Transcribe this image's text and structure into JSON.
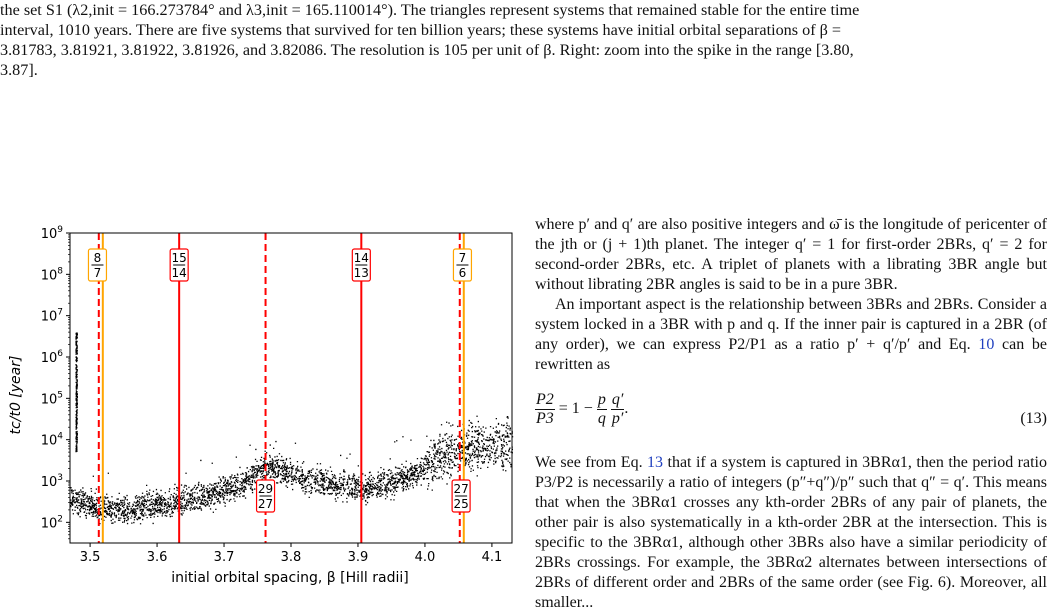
{
  "caption": {
    "line1": "the set S1 (λ2,init = 166.273784° and λ3,init = 165.110014°). The triangles represent systems that remained stable for the entire time",
    "line2": "interval, 1010 years. There are five systems that survived for ten billion years; these systems have initial orbital separations of β =",
    "line3": "3.81783, 3.81921, 3.81922, 3.81926, and 3.82086. The resolution is 105 per unit of β. Right: zoom into the spike in the range [3.80,",
    "line4": "3.87]."
  },
  "body": {
    "p1_a": "where p′ and q′ are also positive integers and ω̄ is the longitude of pericenter of the jth or (j + 1)th planet. The integer q′ = 1 for first-order 2BRs, q′ = 2 for second-order 2BRs, etc. A triplet of planets with a librating 3BR angle but without librating 2BR angles is said to be in a pure 3BR.",
    "p2_a": "An important aspect is the relationship between 3BRs and 2BRs. Consider a system locked in a 3BR with p and q. If the inner pair is captured in a 2BR (of any order), we can express P2/P1 as a ratio p′ + q′/p′ and Eq. ",
    "p2_ref": "10",
    "p2_b": " can be rewritten as",
    "eq_lhs_num": "P2",
    "eq_lhs_den": "P3",
    "eq_mid": " = 1 − ",
    "eq_p": "p",
    "eq_q": "q",
    "eq_qp": "q′",
    "eq_pp": "p′",
    "eq_end": ".",
    "eq_number": "(13)",
    "p3_a": "We see from Eq. ",
    "p3_ref": "13",
    "p3_b": " that if a system is captured in 3BRα1, then the period ratio P3/P2 is necessarily a ratio of integers (p″+q″)/p″ such that q″ = q′. This means that when the 3BRα1 crosses any kth-order 2BRs of any pair of planets, the other pair is also systematically in a kth-order 2BR at the intersection. This is specific to the 3BRα1, although other 3BRs also have a similar periodicity of 2BRs crossings. For example, the 3BRα2 alternates between intersections of 2BRs of different order and 2BRs of the same order (see Fig. 6). Moreover, all smaller..."
  },
  "chart_data": {
    "type": "scatter",
    "xlabel": "initial orbital spacing, β [Hill radii]",
    "ylabel": "tc/t0 [year]",
    "xlim": [
      3.47,
      4.13
    ],
    "ylim_log10": [
      1.5,
      9
    ],
    "x_ticks": [
      "3.5",
      "3.6",
      "3.7",
      "3.8",
      "3.9",
      "4.0",
      "4.1"
    ],
    "y_ticks": [
      "10^2",
      "10^3",
      "10^4",
      "10^5",
      "10^6",
      "10^7",
      "10^8",
      "10^9"
    ],
    "resonance_lines": [
      {
        "x": 3.513,
        "style": "dashed",
        "color": "#ff0000"
      },
      {
        "x": 3.519,
        "style": "solid",
        "color": "#ffa500"
      },
      {
        "x": 3.633,
        "style": "solid",
        "color": "#ff0000"
      },
      {
        "x": 3.762,
        "style": "dashed",
        "color": "#ff0000"
      },
      {
        "x": 3.905,
        "style": "solid",
        "color": "#ff0000"
      },
      {
        "x": 4.052,
        "style": "dashed",
        "color": "#ff0000"
      },
      {
        "x": 4.058,
        "style": "solid",
        "color": "#ffa500"
      }
    ],
    "labels": [
      {
        "x": 3.511,
        "num": "8",
        "den": "7",
        "pos": "top",
        "border": "#ffa500"
      },
      {
        "x": 3.633,
        "num": "15",
        "den": "14",
        "pos": "top",
        "border": "#ff0000"
      },
      {
        "x": 3.905,
        "num": "14",
        "den": "13",
        "pos": "top",
        "border": "#ff0000"
      },
      {
        "x": 4.056,
        "num": "7",
        "den": "6",
        "pos": "top",
        "border": "#ffa500"
      },
      {
        "x": 3.762,
        "num": "29",
        "den": "27",
        "pos": "bottom",
        "border": "#ff0000"
      },
      {
        "x": 4.054,
        "num": "27",
        "den": "25",
        "pos": "bottom",
        "border": "#ff0000"
      }
    ],
    "scatter_profile": [
      {
        "x": 3.47,
        "log_y": 2.55
      },
      {
        "x": 3.5,
        "log_y": 2.4
      },
      {
        "x": 3.53,
        "log_y": 2.35
      },
      {
        "x": 3.56,
        "log_y": 2.3
      },
      {
        "x": 3.6,
        "log_y": 2.45
      },
      {
        "x": 3.63,
        "log_y": 2.5
      },
      {
        "x": 3.66,
        "log_y": 2.6
      },
      {
        "x": 3.7,
        "log_y": 2.8
      },
      {
        "x": 3.73,
        "log_y": 2.95
      },
      {
        "x": 3.76,
        "log_y": 3.35
      },
      {
        "x": 3.79,
        "log_y": 3.25
      },
      {
        "x": 3.82,
        "log_y": 3.05
      },
      {
        "x": 3.86,
        "log_y": 2.95
      },
      {
        "x": 3.9,
        "log_y": 2.85
      },
      {
        "x": 3.93,
        "log_y": 2.9
      },
      {
        "x": 3.96,
        "log_y": 3.05
      },
      {
        "x": 3.99,
        "log_y": 3.25
      },
      {
        "x": 4.02,
        "log_y": 3.6
      },
      {
        "x": 4.05,
        "log_y": 3.75
      },
      {
        "x": 4.08,
        "log_y": 3.85
      },
      {
        "x": 4.13,
        "log_y": 3.9
      }
    ]
  }
}
